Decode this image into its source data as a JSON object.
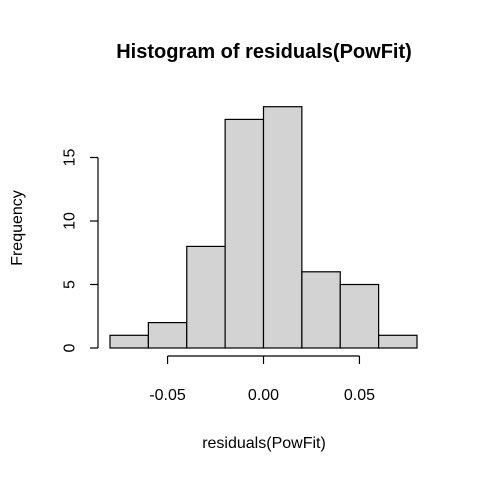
{
  "chart_data": {
    "type": "bar",
    "title": "Histogram of residuals(PowFit)",
    "xlabel": "residuals(PowFit)",
    "ylabel": "Frequency",
    "bin_edges": [
      -0.08,
      -0.06,
      -0.04,
      -0.02,
      0.0,
      0.02,
      0.04,
      0.06,
      0.08
    ],
    "values": [
      1,
      2,
      8,
      18,
      19,
      6,
      5,
      1
    ],
    "xticks": [
      -0.05,
      0.0,
      0.05
    ],
    "xtick_labels": [
      "-0.05",
      "0.00",
      "0.05"
    ],
    "yticks": [
      0,
      5,
      10,
      15
    ],
    "ytick_labels": [
      "0",
      "5",
      "10",
      "15"
    ],
    "bar_color": "#d3d3d3",
    "grid": false
  }
}
